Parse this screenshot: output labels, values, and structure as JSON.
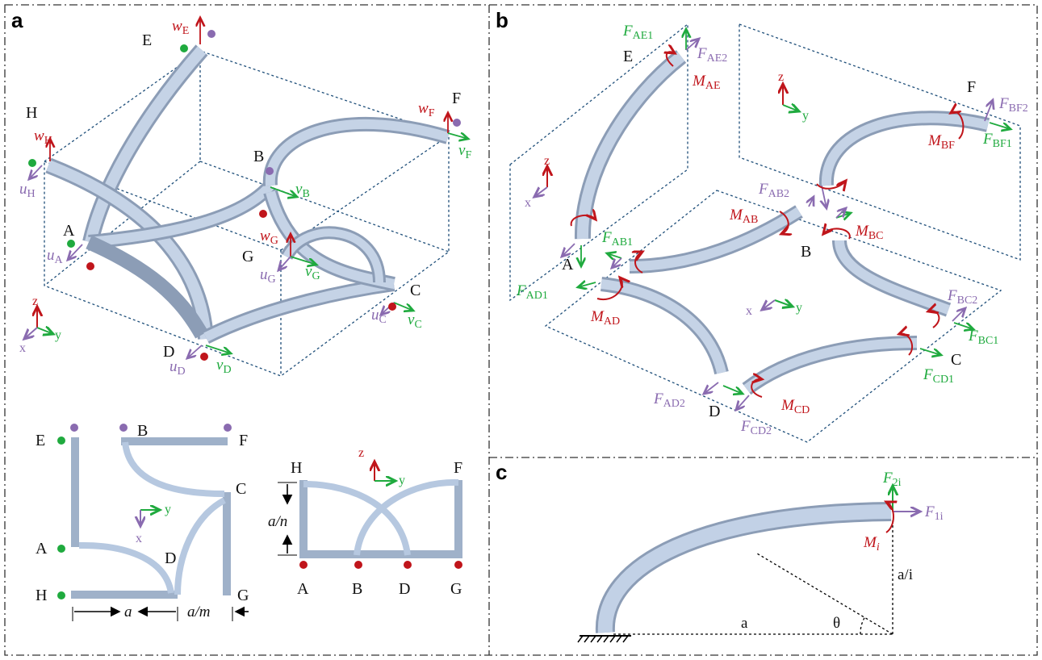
{
  "panels": {
    "a": "a",
    "b": "b",
    "c": "c"
  },
  "axes": {
    "z": "z",
    "y": "y",
    "x": "x"
  },
  "panel_a": {
    "nodes": {
      "E": "E",
      "H": "H",
      "B": "B",
      "F": "F",
      "A": "A",
      "G": "G",
      "C": "C",
      "D": "D"
    },
    "disp": {
      "wE": {
        "sym": "w",
        "sub": "E"
      },
      "wH": {
        "sym": "w",
        "sub": "H"
      },
      "wF": {
        "sym": "w",
        "sub": "F"
      },
      "wG": {
        "sym": "w",
        "sub": "G"
      },
      "uH": {
        "sym": "u",
        "sub": "H"
      },
      "uA": {
        "sym": "u",
        "sub": "A"
      },
      "uG": {
        "sym": "u",
        "sub": "G"
      },
      "uC": {
        "sym": "u",
        "sub": "C"
      },
      "uD": {
        "sym": "u",
        "sub": "D"
      },
      "vF": {
        "sym": "v",
        "sub": "F"
      },
      "vB": {
        "sym": "v",
        "sub": "B"
      },
      "vG": {
        "sym": "v",
        "sub": "G"
      },
      "vC": {
        "sym": "v",
        "sub": "C"
      },
      "vD": {
        "sym": "v",
        "sub": "D"
      }
    },
    "top_view": {
      "E": "E",
      "B": "B",
      "F": "F",
      "C": "C",
      "A": "A",
      "D": "D",
      "H": "H",
      "G": "G",
      "dim_a": "a",
      "dim_am": "a/m"
    },
    "side_view": {
      "H": "H",
      "F": "F",
      "A": "A",
      "B": "B",
      "D": "D",
      "G": "G",
      "dim_an": "a/n"
    }
  },
  "panel_b": {
    "nodes": {
      "E": "E",
      "F": "F",
      "A": "A",
      "B": "B",
      "C": "C",
      "D": "D"
    },
    "forces": {
      "FAE1": {
        "sym": "F",
        "sub": "AE1"
      },
      "FAE2": {
        "sym": "F",
        "sub": "AE2"
      },
      "FBF2": {
        "sym": "F",
        "sub": "BF2"
      },
      "FBF1": {
        "sym": "F",
        "sub": "BF1"
      },
      "FAB2": {
        "sym": "F",
        "sub": "AB2"
      },
      "FAB1": {
        "sym": "F",
        "sub": "AB1"
      },
      "FAD1": {
        "sym": "F",
        "sub": "AD1"
      },
      "FBC2": {
        "sym": "F",
        "sub": "BC2"
      },
      "FBC1": {
        "sym": "F",
        "sub": "BC1"
      },
      "FCD1": {
        "sym": "F",
        "sub": "CD1"
      },
      "FAD2": {
        "sym": "F",
        "sub": "AD2"
      },
      "FCD2": {
        "sym": "F",
        "sub": "CD2"
      }
    },
    "moments": {
      "MAE": {
        "sym": "M",
        "sub": "AE"
      },
      "MBF": {
        "sym": "M",
        "sub": "BF"
      },
      "MAB": {
        "sym": "M",
        "sub": "AB"
      },
      "MBC": {
        "sym": "M",
        "sub": "BC"
      },
      "MAD": {
        "sym": "M",
        "sub": "AD"
      },
      "MCD": {
        "sym": "M",
        "sub": "CD"
      }
    }
  },
  "panel_c": {
    "F2i": {
      "sym": "F",
      "sub": "2i"
    },
    "F1i": {
      "sym": "F",
      "sub": "1i"
    },
    "Mi": {
      "sym": "M",
      "sub": "i"
    },
    "a_over_i": "a/i",
    "a": "a",
    "theta": "θ"
  },
  "colors": {
    "beam": "#b6c8e0",
    "beam_dark": "#8c9db6",
    "green": "#1faa3e",
    "red": "#c0151b",
    "purple": "#8a6bb0",
    "dash": "#1f4f7a"
  }
}
